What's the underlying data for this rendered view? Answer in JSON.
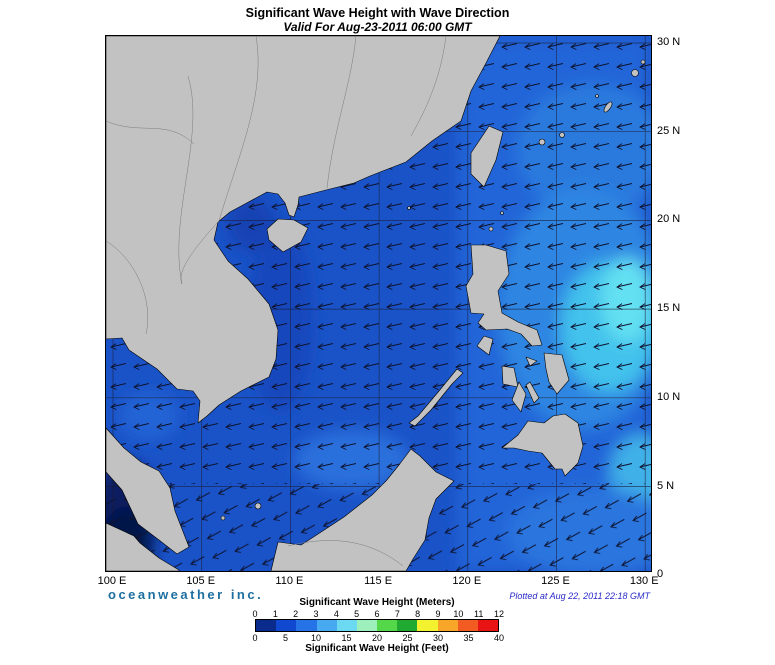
{
  "title": "Significant Wave Height with Wave Direction",
  "subtitle": "Valid For Aug-23-2011 06:00 GMT",
  "branding": {
    "logo": "oceanweather inc.",
    "plotted": "Plotted at Aug 22, 2011 22:18 GMT"
  },
  "axes": {
    "lon_ticks": [
      "100 E",
      "105 E",
      "110 E",
      "115 E",
      "120 E",
      "125 E",
      "130 E"
    ],
    "lat_ticks": [
      "30 N",
      "25 N",
      "20 N",
      "15 N",
      "10 N",
      "5 N",
      "0"
    ]
  },
  "legend": {
    "meters_title": "Significant Wave Height (Meters)",
    "feet_title": "Significant Wave Height (Feet)",
    "meters_ticks": [
      "0",
      "1",
      "2",
      "3",
      "4",
      "5",
      "6",
      "7",
      "8",
      "9",
      "10",
      "11",
      "12"
    ],
    "feet_ticks": [
      "0",
      "5",
      "10",
      "15",
      "20",
      "25",
      "30",
      "35",
      "40"
    ],
    "colors": [
      "#0a2a8c",
      "#1148d0",
      "#2673e8",
      "#47a9f0",
      "#6cd9f2",
      "#9df0bc",
      "#55d74a",
      "#20aa32",
      "#f2f22e",
      "#f7a62a",
      "#f25c22",
      "#e81414"
    ]
  },
  "map": {
    "ocean_base_color": "#1a53c8",
    "land_color": "#c2c2c2"
  }
}
